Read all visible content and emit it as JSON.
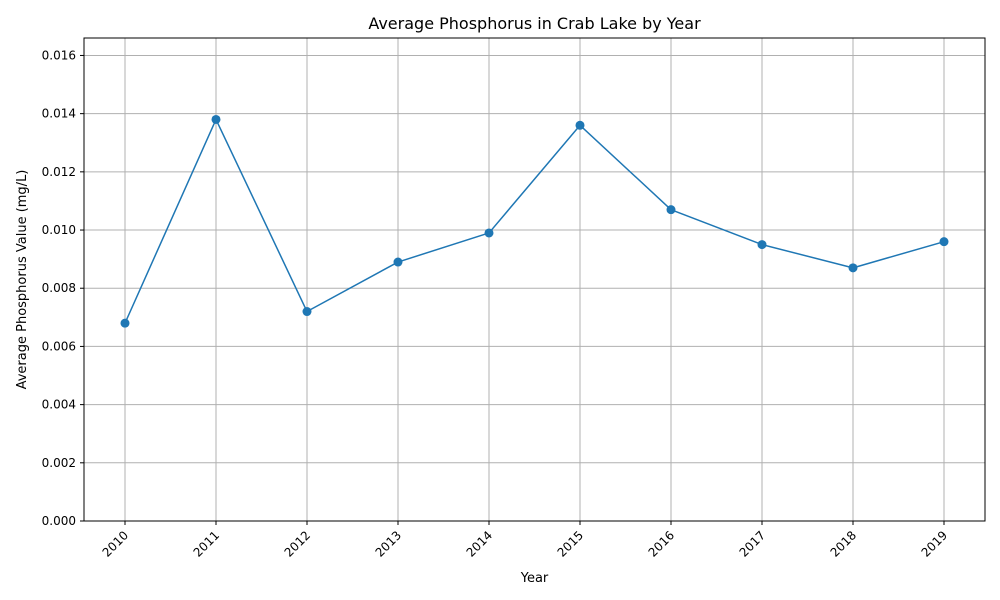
{
  "chart_data": {
    "type": "line",
    "title": "Average Phosphorus in Crab Lake by Year",
    "xlabel": "Year",
    "ylabel": "Average Phosphorus Value (mg/L)",
    "categories": [
      "2010",
      "2011",
      "2012",
      "2013",
      "2014",
      "2015",
      "2016",
      "2017",
      "2018",
      "2019"
    ],
    "series": [
      {
        "values": [
          0.0068,
          0.0138,
          0.0072,
          0.0089,
          0.0099,
          0.0136,
          0.0107,
          0.0095,
          0.0087,
          0.0096
        ],
        "color": "#1f77b4",
        "marker": "circle"
      }
    ],
    "ylim": [
      0,
      0.0166
    ],
    "yticks": [
      "0.000",
      "0.002",
      "0.004",
      "0.006",
      "0.008",
      "0.010",
      "0.012",
      "0.014",
      "0.016"
    ],
    "grid": true,
    "x_tick_rotation": "45"
  }
}
